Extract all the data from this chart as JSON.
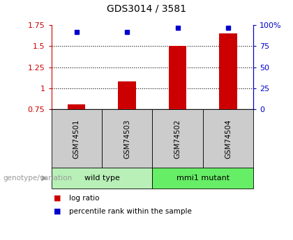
{
  "title": "GDS3014 / 3581",
  "samples": [
    "GSM74501",
    "GSM74503",
    "GSM74502",
    "GSM74504"
  ],
  "log_ratio": [
    0.81,
    1.08,
    1.5,
    1.65
  ],
  "percentile_rank": [
    92,
    92,
    97,
    97
  ],
  "left_ylim": [
    0.75,
    1.75
  ],
  "right_ylim": [
    0,
    100
  ],
  "left_yticks": [
    0.75,
    1.0,
    1.25,
    1.5,
    1.75
  ],
  "left_yticklabels": [
    "0.75",
    "1",
    "1.25",
    "1.5",
    "1.75"
  ],
  "right_yticks": [
    0,
    25,
    50,
    75,
    100
  ],
  "right_yticklabels": [
    "0",
    "25",
    "50",
    "75",
    "100%"
  ],
  "bar_color": "#CC0000",
  "dot_color": "#0000CC",
  "groups": [
    {
      "label": "wild type",
      "indices": [
        0,
        1
      ],
      "color": "#b8f0b8"
    },
    {
      "label": "mmi1 mutant",
      "indices": [
        2,
        3
      ],
      "color": "#66ee66"
    }
  ],
  "group_label_prefix": "genotype/variation",
  "legend_items": [
    {
      "color": "#CC0000",
      "label": "log ratio"
    },
    {
      "color": "#0000CC",
      "label": "percentile rank within the sample"
    }
  ],
  "grid_yticks": [
    1.0,
    1.25,
    1.5
  ],
  "bar_width": 0.35,
  "background_color": "#ffffff",
  "tick_area_bg": "#cccccc"
}
